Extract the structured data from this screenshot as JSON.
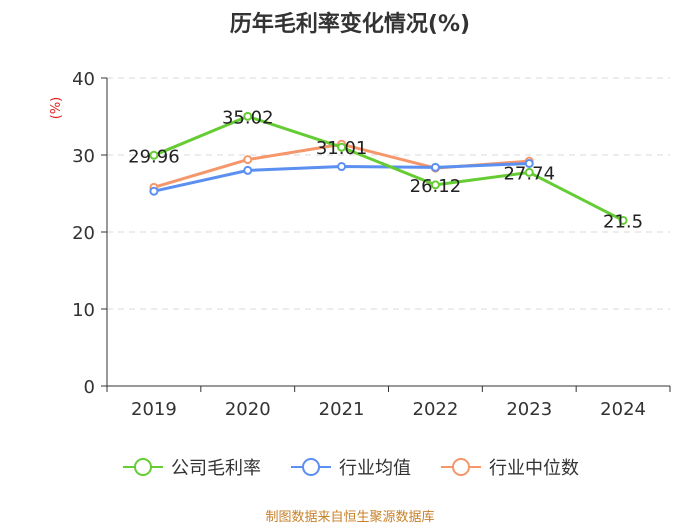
{
  "chart_data": {
    "type": "line",
    "title": "历年毛利率变化情况(%)",
    "ylabel": "(%)",
    "xlabel": "",
    "categories": [
      "2019",
      "2020",
      "2021",
      "2022",
      "2023",
      "2024"
    ],
    "ylim": [
      0,
      40
    ],
    "yticks": [
      0,
      10,
      20,
      30,
      40
    ],
    "grid": true,
    "legend_position": "bottom",
    "series": [
      {
        "name": "公司毛利率",
        "color": "#66cc33",
        "values": [
          29.96,
          35.02,
          31.01,
          26.12,
          27.74,
          21.5
        ],
        "labels": [
          "29.96",
          "35.02",
          "31.01",
          "26.12",
          "27.74",
          "21.5"
        ]
      },
      {
        "name": "行业均值",
        "color": "#5b8ff0",
        "values": [
          25.3,
          28.0,
          28.5,
          28.4,
          28.9,
          null
        ]
      },
      {
        "name": "行业中位数",
        "color": "#f5966b",
        "values": [
          25.8,
          29.4,
          31.4,
          28.3,
          29.2,
          null
        ]
      }
    ]
  },
  "source": "制图数据来自恒生聚源数据库"
}
